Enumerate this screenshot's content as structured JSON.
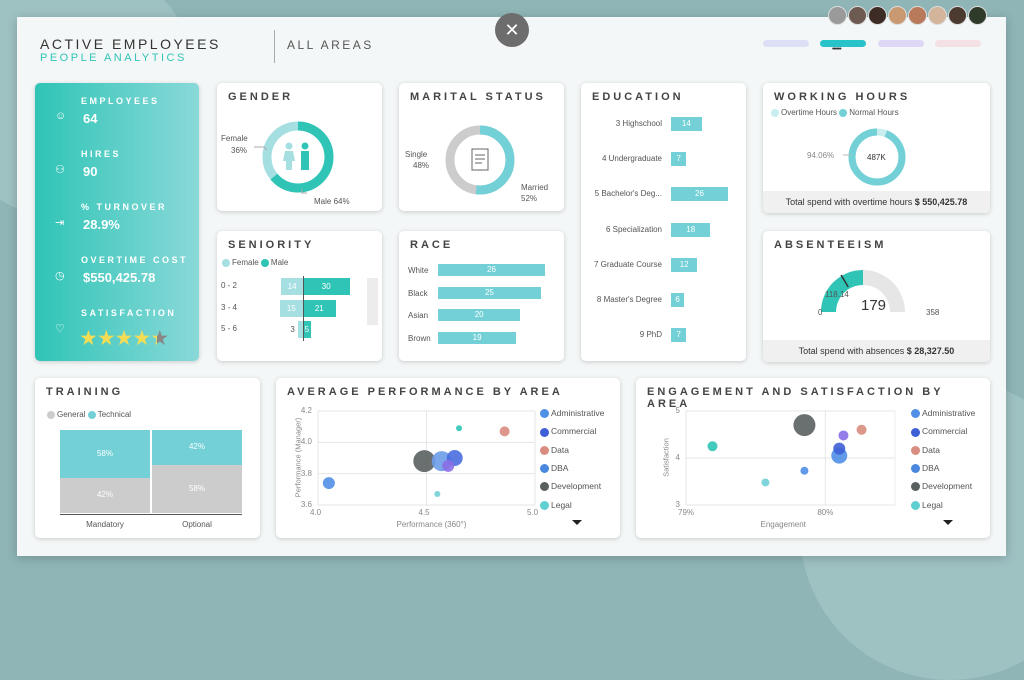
{
  "header": {
    "title": "ACTIVE EMPLOYEES",
    "subtitle": "PEOPLE ANALYTICS",
    "area": "ALL AREAS",
    "page_indicator": "••••••"
  },
  "colors": {
    "teal": "#2fc4b6",
    "light_teal": "#a6dfe2",
    "mid_teal": "#72d0d6",
    "grey": "#cccccc",
    "dark": "#5f6566"
  },
  "nav_pills": [
    {
      "color": "#dcdff5"
    },
    {
      "color": "#27c3c9"
    },
    {
      "color": "#ded8f6"
    },
    {
      "color": "#f3e1e4"
    }
  ],
  "avatars": [
    "#9a9a9a",
    "#6d5a50",
    "#3d2b25",
    "#c99a72",
    "#b87a5a",
    "#d2b59a",
    "#4a3a30",
    "#2e3a2a"
  ],
  "kpis": [
    {
      "icon": "people-icon",
      "label": "EMPLOYEES",
      "value": "64"
    },
    {
      "icon": "add-user-icon",
      "label": "HIRES",
      "value": "90"
    },
    {
      "icon": "exit-icon",
      "label": "% TURNOVER",
      "value": "28.9%"
    },
    {
      "icon": "clock-icon",
      "label": "OVERTIME COST",
      "value": "$550,425.78"
    },
    {
      "icon": "heart-icon",
      "label": "SATISFACTION",
      "value": ""
    }
  ],
  "satisfaction_stars": {
    "rating": 4.4,
    "max": 5
  },
  "gender": {
    "title": "GENDER",
    "female_label": "Female",
    "female_pct": "36%",
    "male_label": "Male 64%",
    "male_value": 64
  },
  "marital": {
    "title": "MARITAL STATUS",
    "single_label": "Single",
    "single_pct": "48%",
    "married_label": "Married",
    "married_pct": "52%",
    "married_value": 52
  },
  "education": {
    "title": "EDUCATION",
    "max": 26,
    "items": [
      {
        "label": "3 Highschool",
        "value": 14
      },
      {
        "label": "4 Undergraduate",
        "value": 7
      },
      {
        "label": "5 Bachelor's Deg...",
        "value": 26
      },
      {
        "label": "6 Specialization",
        "value": 18
      },
      {
        "label": "7 Graduate Course",
        "value": 12
      },
      {
        "label": "8 Master's Degree",
        "value": 6
      },
      {
        "label": "9 PhD",
        "value": 7
      }
    ]
  },
  "working_hours": {
    "title": "WORKING HOURS",
    "legend": [
      "Overtime Hours",
      "Normal Hours"
    ],
    "center": "487K",
    "normal_pct_label": "94.06%",
    "normal_pct": 94.06,
    "footer_text": "Total spend with overtime hours",
    "footer_value": "$ 550,425.78"
  },
  "seniority": {
    "title": "SENIORITY",
    "legend": [
      "Female",
      "Male"
    ],
    "rows": [
      {
        "label": "0 - 2",
        "female": 14,
        "male": 30
      },
      {
        "label": "3 - 4",
        "female": 15,
        "male": 21
      },
      {
        "label": "5 - 6",
        "female": 3,
        "male": 5
      }
    ]
  },
  "race": {
    "title": "RACE",
    "max": 26,
    "items": [
      {
        "label": "White",
        "value": 26
      },
      {
        "label": "Black",
        "value": 25
      },
      {
        "label": "Asian",
        "value": 20
      },
      {
        "label": "Brown",
        "value": 19
      }
    ]
  },
  "absenteeism": {
    "title": "ABSENTEEISM",
    "value": 179,
    "target": 118.14,
    "min": 0,
    "max": 358,
    "value_label": "179",
    "target_label": "118.14",
    "min_label": "0",
    "max_label": "358",
    "footer_text": "Total spend with absences",
    "footer_value": "$ 28,327.50"
  },
  "training": {
    "title": "TRAINING",
    "legend": [
      "General",
      "Technical"
    ],
    "columns": [
      {
        "label": "Mandatory",
        "technical": 58,
        "general": 42,
        "technical_label": "58%",
        "general_label": "42%"
      },
      {
        "label": "Optional",
        "technical": 42,
        "general": 58,
        "technical_label": "42%",
        "general_label": "58%"
      }
    ]
  },
  "legend_areas": [
    {
      "name": "Administrative",
      "color": "#4f8fe6"
    },
    {
      "name": "Commercial",
      "color": "#3f5fd6"
    },
    {
      "name": "Data",
      "color": "#d98d80"
    },
    {
      "name": "DBA",
      "color": "#4a88e0"
    },
    {
      "name": "Development",
      "color": "#5a5f60"
    },
    {
      "name": "Legal",
      "color": "#5fcfd2"
    }
  ],
  "chart_data": [
    {
      "type": "scatter",
      "title": "AVERAGE PERFORMANCE BY AREA",
      "xlabel": "Performance (360°)",
      "ylabel": "Performance (Manager)",
      "xlim": [
        4.0,
        5.0
      ],
      "ylim": [
        3.6,
        4.2
      ],
      "xticks": [
        "4.0",
        "4.5",
        "5.0"
      ],
      "yticks": [
        "4.2",
        "4.0",
        "3.8",
        "3.6"
      ],
      "xtickvals": [
        4.0,
        4.5,
        5.0
      ],
      "ytickvals": [
        4.2,
        4.0,
        3.8,
        3.6
      ],
      "points": [
        {
          "x": 4.05,
          "y": 3.74,
          "size": 6,
          "color": "#4f8fe6"
        },
        {
          "x": 4.49,
          "y": 3.88,
          "size": 11,
          "color": "#5a5f60"
        },
        {
          "x": 4.57,
          "y": 3.88,
          "size": 10,
          "color": "#6b9de8"
        },
        {
          "x": 4.63,
          "y": 3.9,
          "size": 8,
          "color": "#4a6ee0"
        },
        {
          "x": 4.6,
          "y": 3.85,
          "size": 6,
          "color": "#8a6ee6"
        },
        {
          "x": 4.86,
          "y": 4.07,
          "size": 5,
          "color": "#d98d80"
        },
        {
          "x": 4.65,
          "y": 4.09,
          "size": 3,
          "color": "#2fc4b6"
        },
        {
          "x": 4.55,
          "y": 3.67,
          "size": 3,
          "color": "#72d0d6"
        }
      ]
    },
    {
      "type": "scatter",
      "title": "ENGAGEMENT AND SATISFACTION BY AREA",
      "xlabel": "Engagement",
      "ylabel": "Satisfaction",
      "xlim": [
        79,
        80.5
      ],
      "ylim": [
        3,
        5
      ],
      "xticks": [
        "79%",
        "80%"
      ],
      "yticks": [
        "5",
        "4",
        "3"
      ],
      "xtickvals": [
        79,
        80
      ],
      "ytickvals": [
        5,
        4,
        3
      ],
      "points": [
        {
          "x": 79.19,
          "y": 4.25,
          "size": 5,
          "color": "#2fc4b6"
        },
        {
          "x": 79.57,
          "y": 3.48,
          "size": 4,
          "color": "#72d0d6"
        },
        {
          "x": 79.85,
          "y": 3.73,
          "size": 4,
          "color": "#4f8fe6"
        },
        {
          "x": 79.85,
          "y": 4.7,
          "size": 11,
          "color": "#5a5f60"
        },
        {
          "x": 80.1,
          "y": 4.05,
          "size": 8,
          "color": "#4f8fe6"
        },
        {
          "x": 80.1,
          "y": 4.2,
          "size": 6,
          "color": "#3f5fd6"
        },
        {
          "x": 80.13,
          "y": 4.48,
          "size": 5,
          "color": "#8a6ee6"
        },
        {
          "x": 80.26,
          "y": 4.6,
          "size": 5,
          "color": "#d98d80"
        }
      ]
    }
  ]
}
